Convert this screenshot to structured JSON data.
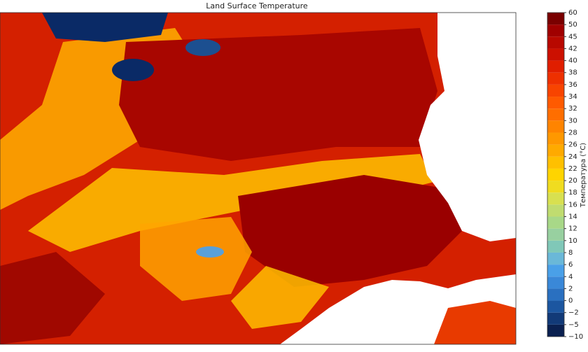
{
  "title": "Land Surface Temperature",
  "colorbar": {
    "label": "Температура (°C)",
    "ticks": [
      {
        "value": -10,
        "label": "−10"
      },
      {
        "value": -5,
        "label": "−5"
      },
      {
        "value": -2,
        "label": "−2"
      },
      0,
      2,
      4,
      6,
      8,
      10,
      12,
      14,
      16,
      18,
      20,
      22,
      24,
      26,
      28,
      30,
      32,
      34,
      36,
      38,
      40,
      42,
      45,
      50,
      60
    ],
    "colors": [
      "#0a2050",
      "#123a78",
      "#1c56a0",
      "#2a70c0",
      "#3a88d8",
      "#4aa0e8",
      "#6ab8d8",
      "#80c8b8",
      "#98d0a0",
      "#a8d888",
      "#c0dc70",
      "#d8e050",
      "#f0dc20",
      "#ffd400",
      "#ffc000",
      "#ffaa00",
      "#ff9800",
      "#ff8400",
      "#ff6e00",
      "#ff5a00",
      "#f84400",
      "#ee3000",
      "#e01e00",
      "#cc1000",
      "#b80800",
      "#a00000",
      "#7a0000"
    ]
  }
}
